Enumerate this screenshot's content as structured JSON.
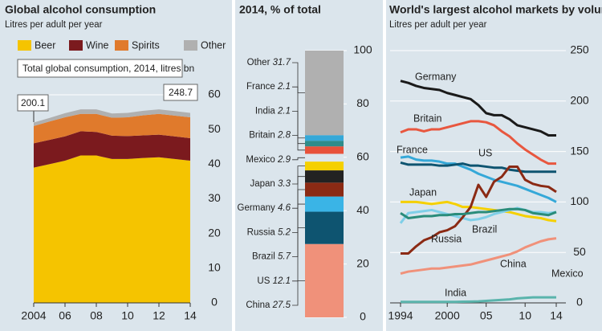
{
  "chart_data": [
    {
      "type": "area",
      "title": "Global alcohol consumption",
      "subtitle": "Litres per adult per year",
      "annotations": [
        "Total global consumption, 2014, litres bn",
        "200.1",
        "248.7"
      ],
      "x": [
        2004,
        2005,
        2006,
        2007,
        2008,
        2009,
        2010,
        2011,
        2012,
        2013,
        2014
      ],
      "xlim": [
        2004,
        2014
      ],
      "xticks": [
        {
          "value": 2004,
          "label": "2004"
        },
        {
          "value": 2006,
          "label": "06"
        },
        {
          "value": 2008,
          "label": "08"
        },
        {
          "value": 2010,
          "label": "10"
        },
        {
          "value": 2012,
          "label": "12"
        },
        {
          "value": 2014,
          "label": "14"
        }
      ],
      "ylim": [
        0,
        60
      ],
      "yticks": [
        0,
        10,
        20,
        30,
        40,
        50,
        60
      ],
      "grid": true,
      "stacked": true,
      "series": [
        {
          "name": "Beer",
          "color": "#f5c400",
          "values": [
            39,
            40,
            41,
            42.5,
            42.5,
            41.5,
            41.5,
            41.8,
            42,
            41.5,
            41
          ]
        },
        {
          "name": "Wine",
          "color": "#7b1a1e",
          "values": [
            7,
            7,
            7,
            7,
            6.8,
            6.7,
            6.6,
            6.5,
            6.5,
            6.5,
            6.5
          ]
        },
        {
          "name": "Spirits",
          "color": "#e07a2c",
          "values": [
            5,
            5.3,
            5.5,
            5,
            5.2,
            5.2,
            5.4,
            5.8,
            6,
            6,
            6
          ]
        },
        {
          "name": "Other",
          "color": "#b0b0b0",
          "values": [
            1,
            1,
            1.2,
            1.3,
            1.3,
            1.2,
            1.3,
            1.3,
            1.3,
            1.3,
            1.3
          ]
        }
      ]
    },
    {
      "type": "bar",
      "title": "2014, % of total",
      "stacked": true,
      "categories": [
        "China",
        "US",
        "Brazil",
        "Russia",
        "Germany",
        "Japan",
        "Mexico",
        "Britain",
        "India",
        "France",
        "Other"
      ],
      "values": [
        27.5,
        12.1,
        5.7,
        5.2,
        4.6,
        3.3,
        2.9,
        2.8,
        2.1,
        2.1,
        31.7
      ],
      "colors": [
        "#f0917a",
        "#0e5470",
        "#3ab4e6",
        "#8b2a14",
        "#222222",
        "#f5d000",
        "#dce6ec",
        "#e8523a",
        "#2f8c8a",
        "#35a8d8",
        "#b0b0b0"
      ],
      "ylim": [
        0,
        100
      ],
      "yticks": [
        0,
        20,
        40,
        60,
        80,
        100
      ],
      "grid": true
    },
    {
      "type": "line",
      "title": "World's largest alcohol markets by volume",
      "subtitle": "Litres per adult per year",
      "x": [
        1994,
        1995,
        1996,
        1997,
        1998,
        1999,
        2000,
        2001,
        2002,
        2003,
        2004,
        2005,
        2006,
        2007,
        2008,
        2009,
        2010,
        2011,
        2012,
        2013,
        2014
      ],
      "xlim": [
        1994,
        2014
      ],
      "xticks": [
        {
          "value": 1994,
          "label": "1994"
        },
        {
          "value": 2000,
          "label": "2000"
        },
        {
          "value": 2005,
          "label": "05"
        },
        {
          "value": 2010,
          "label": "10"
        },
        {
          "value": 2014,
          "label": "14"
        }
      ],
      "ylim": [
        0,
        250
      ],
      "yticks": [
        0,
        50,
        100,
        150,
        200,
        250
      ],
      "grid": true,
      "series": [
        {
          "name": "Germany",
          "color": "#1a1a1a",
          "values": [
            220,
            218,
            215,
            213,
            212,
            211,
            208,
            206,
            204,
            202,
            196,
            188,
            186,
            186,
            182,
            176,
            174,
            172,
            170,
            166,
            166
          ]
        },
        {
          "name": "Britain",
          "color": "#e8573f",
          "values": [
            169,
            172,
            172,
            170,
            172,
            172,
            174,
            176,
            178,
            180,
            180,
            179,
            176,
            170,
            165,
            158,
            152,
            147,
            142,
            138,
            138
          ]
        },
        {
          "name": "France",
          "color": "#35a8d8",
          "values": [
            144,
            145,
            142,
            141,
            141,
            140,
            138,
            138,
            135,
            132,
            128,
            125,
            122,
            120,
            118,
            116,
            113,
            110,
            107,
            104,
            100
          ]
        },
        {
          "name": "US",
          "color": "#0e5470",
          "values": [
            139,
            137,
            137,
            137,
            137,
            136,
            136,
            137,
            138,
            136,
            136,
            135,
            134,
            134,
            132,
            131,
            130,
            130,
            130,
            130,
            130
          ]
        },
        {
          "name": "Japan",
          "color": "#f5d000",
          "values": [
            100,
            100,
            100,
            99,
            98,
            99,
            100,
            98,
            95,
            95,
            94,
            93,
            92,
            91,
            90,
            88,
            86,
            85,
            84,
            82,
            81
          ]
        },
        {
          "name": "Brazil",
          "color": "#7fcfe8",
          "values": [
            79,
            89,
            90,
            91,
            92,
            90,
            88,
            86,
            84,
            82,
            83,
            85,
            88,
            90,
            92,
            94,
            92,
            90,
            90,
            89,
            90
          ]
        },
        {
          "name": "Russia",
          "color": "#8b2a14",
          "values": [
            49,
            49,
            56,
            62,
            65,
            70,
            72,
            76,
            85,
            95,
            117,
            105,
            120,
            125,
            135,
            135,
            122,
            118,
            116,
            115,
            110
          ]
        },
        {
          "name": "China",
          "color": "#f0917a",
          "values": [
            29,
            31,
            32,
            33,
            34,
            34,
            35,
            36,
            37,
            38,
            40,
            42,
            44,
            46,
            48,
            51,
            55,
            58,
            61,
            63,
            64
          ]
        },
        {
          "name": "Mexico",
          "color": "#2a8c7a",
          "values": [
            89,
            84,
            85,
            86,
            86,
            87,
            87,
            88,
            88,
            89,
            90,
            90,
            91,
            92,
            93,
            93,
            92,
            89,
            88,
            87,
            90
          ]
        },
        {
          "name": "India",
          "color": "#5ab4ac",
          "values": [
            1,
            1,
            1,
            1,
            1,
            1,
            1,
            1,
            1.2,
            1.3,
            1.5,
            2,
            2.5,
            3,
            3.5,
            4.5,
            5,
            5.5,
            5.5,
            5.5,
            5.5
          ]
        }
      ]
    }
  ]
}
